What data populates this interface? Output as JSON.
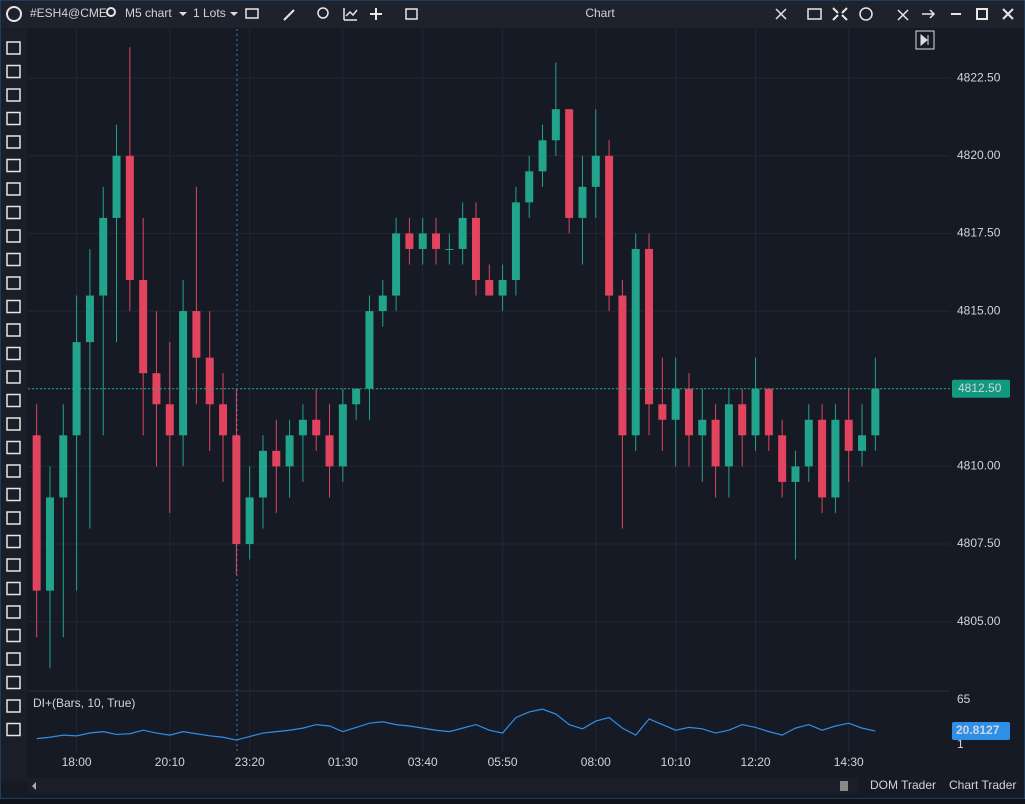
{
  "ui": {
    "symbol": "#ESH4@CME",
    "timeframe": "M5 chart",
    "lots": "1 Lots",
    "window_title": "Chart",
    "tabs": [
      "DOM Trader",
      "Chart Trader"
    ]
  },
  "chart_data": [
    {
      "type": "candlestick",
      "categories": [
        null,
        null,
        null,
        "18:00",
        null,
        null,
        null,
        null,
        null,
        null,
        "20:10",
        null,
        null,
        null,
        null,
        null,
        "23:20",
        null,
        null,
        null,
        null,
        null,
        null,
        "01:30",
        null,
        null,
        null,
        null,
        null,
        "03:40",
        null,
        null,
        null,
        null,
        null,
        "05:50",
        null,
        null,
        null,
        null,
        null,
        null,
        "08:00",
        null,
        null,
        null,
        null,
        null,
        "10:10",
        null,
        null,
        null,
        null,
        null,
        "12:20",
        null,
        null,
        null,
        null,
        null,
        null,
        "14:30",
        null,
        null
      ],
      "open": [
        4811,
        4806,
        4809,
        4811,
        4814,
        4815.5,
        4818,
        4820,
        4816,
        4813,
        4812,
        4811,
        4815,
        4813.5,
        4812,
        4811,
        4807.5,
        4809,
        4810.5,
        4810,
        4811,
        4811.5,
        4811,
        4810,
        4812,
        4812.5,
        4815,
        4815.5,
        4817.5,
        4817,
        4817.5,
        4817,
        4817,
        4818,
        4816,
        4815.5,
        4816,
        4818.5,
        4819.5,
        4820.5,
        4821.5,
        4818,
        4819,
        4820,
        4815.5,
        4811,
        4817,
        4812,
        4811.5,
        4812.5,
        4811,
        4811.5,
        4810,
        4812,
        4811,
        4812.5,
        4811,
        4809.5,
        4810,
        4811.5,
        4809,
        4811.5,
        4810.5,
        4811
      ],
      "high": [
        4812,
        4810,
        4812,
        4815.5,
        4817,
        4819,
        4821,
        4823.5,
        4818,
        4815,
        4814,
        4816,
        4819,
        4815,
        4813,
        4812.5,
        4810,
        4811,
        4811.5,
        4811.5,
        4812,
        4812.5,
        4812,
        4812.5,
        4812.5,
        4815.5,
        4816,
        4818,
        4818,
        4818,
        4818,
        4817.5,
        4818.5,
        4818.5,
        4816.5,
        4816.5,
        4819,
        4820,
        4821,
        4823,
        4821.5,
        4820,
        4821.5,
        4820.5,
        4816,
        4817.5,
        4817.5,
        4813.5,
        4813.5,
        4813,
        4812.5,
        4812,
        4812.5,
        4812.5,
        4813.5,
        4812.5,
        4811.5,
        4810.5,
        4812,
        4812,
        4812,
        4812.5,
        4812,
        4813.5
      ],
      "low": [
        4804.5,
        4803.5,
        4804.5,
        4806,
        4808,
        4811,
        4814,
        4815,
        4811,
        4810,
        4808.5,
        4810,
        4812,
        4810.5,
        4809.5,
        4806.5,
        4807,
        4808,
        4808.5,
        4809,
        4809.5,
        4810.5,
        4809,
        4809.5,
        4811.5,
        4811.5,
        4814.5,
        4815,
        4816.5,
        4816.5,
        4816.5,
        4816.5,
        4816.5,
        4815.5,
        4815.5,
        4815,
        4815.5,
        4818,
        4819,
        4820,
        4817.5,
        4816.5,
        4818,
        4815,
        4808,
        4810.5,
        4811,
        4810.5,
        4810,
        4810,
        4809.5,
        4809,
        4809,
        4810,
        4810.5,
        4810.5,
        4809,
        4807,
        4809.5,
        4808.5,
        4808.5,
        4809.5,
        4810,
        4810.5
      ],
      "close": [
        4806,
        4809,
        4811,
        4814,
        4815.5,
        4818,
        4820,
        4816,
        4813,
        4812,
        4811,
        4815,
        4813.5,
        4812,
        4811,
        4807.5,
        4809,
        4810.5,
        4810,
        4811,
        4811.5,
        4811,
        4810,
        4812,
        4812.5,
        4815,
        4815.5,
        4817.5,
        4817,
        4817.5,
        4817,
        4817,
        4818,
        4816,
        4815.5,
        4816,
        4818.5,
        4819.5,
        4820.5,
        4821.5,
        4818,
        4819,
        4820,
        4815.5,
        4811,
        4817,
        4812,
        4811.5,
        4812.5,
        4811,
        4811.5,
        4810,
        4812,
        4811,
        4812.5,
        4811,
        4809.5,
        4810,
        4811.5,
        4809,
        4811.5,
        4810.5,
        4811,
        4812.5
      ],
      "up_color": "#22a38c",
      "down_color": "#e2445f",
      "ylim": [
        4802.8,
        4824.05
      ],
      "yticks": [
        {
          "value": 4805,
          "label": "4805.00"
        },
        {
          "value": 4807.5,
          "label": "4807.50"
        },
        {
          "value": 4810,
          "label": "4810.00"
        },
        {
          "value": 4812.5,
          "label": "4812.50"
        },
        {
          "value": 4815,
          "label": "4815.00"
        },
        {
          "value": 4817.5,
          "label": "4817.50"
        },
        {
          "value": 4820,
          "label": "4820.00"
        },
        {
          "value": 4822.5,
          "label": "4822.50"
        }
      ],
      "last_price": {
        "value": 4812.5,
        "label": "4812.50"
      },
      "grid": true
    },
    {
      "type": "line",
      "title": "DI+(Bars, 10, True)",
      "color": "#2e8fe8",
      "values": [
        10,
        12,
        15,
        14,
        18,
        20,
        16,
        17,
        22,
        18,
        15,
        20,
        17,
        14,
        12,
        8,
        13,
        18,
        20,
        22,
        25,
        30,
        28,
        20,
        26,
        32,
        34,
        30,
        28,
        25,
        22,
        20,
        25,
        30,
        22,
        18,
        40,
        48,
        52,
        45,
        30,
        24,
        35,
        40,
        25,
        15,
        38,
        30,
        22,
        26,
        24,
        18,
        22,
        30,
        26,
        20,
        15,
        25,
        30,
        22,
        28,
        32,
        25,
        20.8127
      ],
      "ylim": [
        -9,
        76.4
      ],
      "yticks": [
        1,
        65
      ]
    }
  ]
}
